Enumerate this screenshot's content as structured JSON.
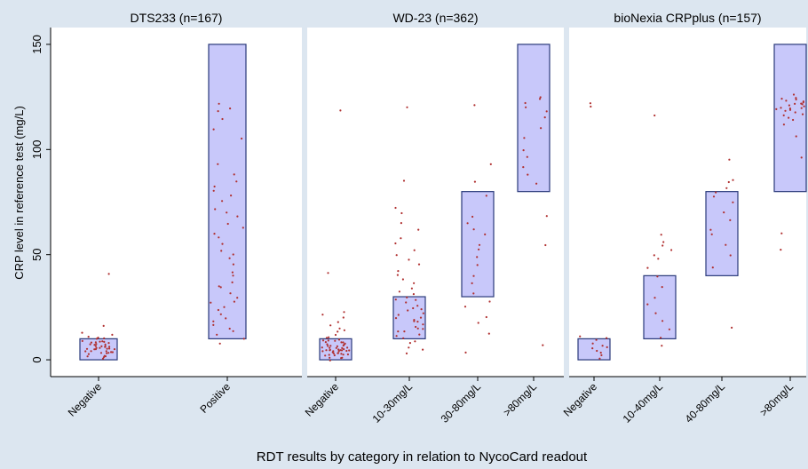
{
  "chart_data": {
    "type": "scatter",
    "ylabel": "CRP level in reference test (mg/L)",
    "xlabel": "RDT results by category in relation to NycoCard readout",
    "ylim": [
      -8,
      158
    ],
    "yticks": [
      0,
      50,
      100,
      150
    ],
    "grid": false,
    "colors": {
      "figure_bg": "#dce6f0",
      "plot_bg": "#ffffff",
      "strip_bg": "#dce6f0",
      "box_fill": "#c8c8fa",
      "box_stroke": "#2a3a7a",
      "point": "#b03030"
    },
    "panels": [
      {
        "title": "DTS233 (n=167)",
        "categories": [
          "Negative",
          "Positive"
        ],
        "boxes": [
          {
            "category": "Negative",
            "low": 0,
            "high": 10
          },
          {
            "category": "Positive",
            "low": 10,
            "high": 150
          }
        ],
        "points": [
          {
            "category": "Negative",
            "values": [
              1,
              1,
              2,
              2,
              2,
              3,
              3,
              3,
              3,
              4,
              4,
              4,
              4,
              4,
              5,
              5,
              5,
              5,
              5,
              5,
              6,
              6,
              6,
              6,
              6,
              6,
              7,
              7,
              7,
              7,
              7,
              8,
              8,
              8,
              8,
              9,
              9,
              9,
              10,
              10,
              11,
              11,
              12,
              13,
              16,
              41
            ]
          },
          {
            "category": "Positive",
            "values": [
              8,
              10,
              12,
              14,
              15,
              17,
              18,
              20,
              22,
              24,
              25,
              27,
              28,
              30,
              32,
              34,
              35,
              37,
              40,
              42,
              45,
              48,
              50,
              52,
              55,
              58,
              60,
              63,
              65,
              68,
              70,
              72,
              75,
              78,
              80,
              82,
              85,
              88,
              93,
              105,
              110,
              115,
              118,
              120,
              122
            ]
          }
        ]
      },
      {
        "title": "WD-23 (n=362)",
        "categories": [
          "Negative",
          "10-30mg/L",
          "30-80mg/L",
          ">80mg/L"
        ],
        "boxes": [
          {
            "category": "Negative",
            "low": 0,
            "high": 10
          },
          {
            "category": "10-30mg/L",
            "low": 10,
            "high": 30
          },
          {
            "category": "30-80mg/L",
            "low": 30,
            "high": 80
          },
          {
            "category": ">80mg/L",
            "low": 80,
            "high": 150
          }
        ],
        "points": [
          {
            "category": "Negative",
            "values": [
              0,
              1,
              1,
              1,
              2,
              2,
              2,
              2,
              3,
              3,
              3,
              3,
              3,
              4,
              4,
              4,
              4,
              4,
              4,
              5,
              5,
              5,
              5,
              5,
              5,
              5,
              6,
              6,
              6,
              6,
              6,
              6,
              7,
              7,
              7,
              7,
              7,
              8,
              8,
              8,
              8,
              9,
              9,
              9,
              10,
              10,
              11,
              12,
              13,
              14,
              15,
              16,
              18,
              20,
              22,
              23,
              41,
              119
            ]
          },
          {
            "category": "10-30mg/L",
            "values": [
              3,
              5,
              6,
              8,
              9,
              10,
              11,
              12,
              13,
              14,
              15,
              15,
              16,
              17,
              18,
              18,
              19,
              20,
              20,
              21,
              22,
              23,
              24,
              25,
              26,
              27,
              28,
              29,
              30,
              31,
              32,
              34,
              36,
              38,
              40,
              42,
              45,
              48,
              50,
              52,
              55,
              58,
              62,
              65,
              70,
              72,
              85,
              120
            ]
          },
          {
            "category": "30-80mg/L",
            "values": [
              3,
              12,
              18,
              20,
              25,
              28,
              32,
              36,
              40,
              45,
              49,
              52,
              55,
              60,
              62,
              65,
              68,
              78,
              85,
              93,
              121
            ]
          },
          {
            "category": ">80mg/L",
            "values": [
              7,
              55,
              68,
              84,
              88,
              92,
              96,
              100,
              105,
              110,
              115,
              118,
              120,
              122,
              124,
              125
            ]
          }
        ]
      },
      {
        "title": "bioNexia CRPplus (n=157)",
        "categories": [
          "Negative",
          "10-40mg/L",
          "40-80mg/L",
          ">80mg/L"
        ],
        "boxes": [
          {
            "category": "Negative",
            "low": 0,
            "high": 10
          },
          {
            "category": "10-40mg/L",
            "low": 10,
            "high": 40
          },
          {
            "category": "40-80mg/L",
            "low": 40,
            "high": 80
          },
          {
            "category": ">80mg/L",
            "low": 80,
            "high": 150
          }
        ],
        "points": [
          {
            "category": "Negative",
            "values": [
              1,
              2,
              3,
              4,
              5,
              6,
              7,
              8,
              9,
              10,
              11,
              120,
              122
            ]
          },
          {
            "category": "10-40mg/L",
            "values": [
              7,
              10,
              14,
              18,
              22,
              26,
              30,
              35,
              40,
              44,
              48,
              50,
              52,
              54,
              56,
              59,
              116
            ]
          },
          {
            "category": "40-80mg/L",
            "values": [
              15,
              44,
              50,
              55,
              60,
              62,
              66,
              70,
              75,
              78,
              80,
              82,
              84,
              86,
              95
            ]
          },
          {
            "category": ">80mg/L",
            "values": [
              52,
              60,
              96,
              106,
              112,
              114,
              115,
              116,
              117,
              118,
              118,
              119,
              119,
              120,
              120,
              120,
              121,
              121,
              121,
              122,
              122,
              122,
              123,
              123,
              124,
              124,
              125,
              126
            ]
          }
        ]
      }
    ]
  }
}
